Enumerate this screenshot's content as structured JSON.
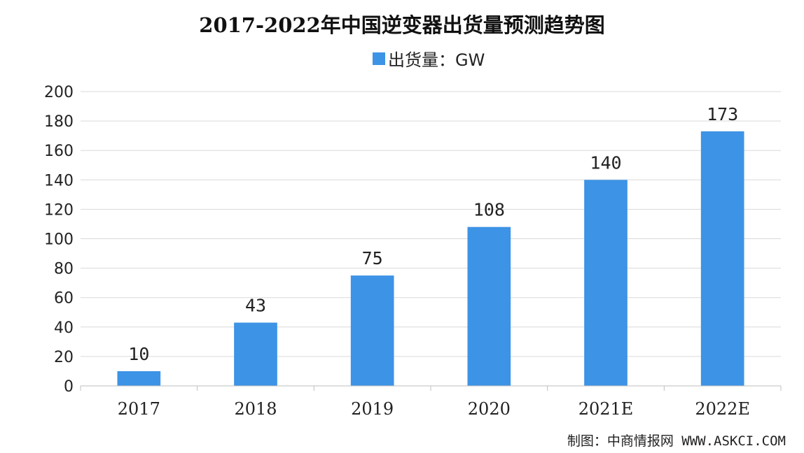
{
  "chart_data": {
    "type": "bar",
    "title": "2017-2022年中国逆变器出货量预测趋势图",
    "categories": [
      "2017",
      "2018",
      "2019",
      "2020",
      "2021E",
      "2022E"
    ],
    "series": [
      {
        "name": "出货量：GW",
        "values": [
          10,
          43,
          75,
          108,
          140,
          173
        ]
      }
    ],
    "data_labels": [
      "10",
      "43",
      "75",
      "108",
      "140",
      "173"
    ],
    "xlabel": "",
    "ylabel": "",
    "ylim": [
      0,
      200
    ],
    "yticks": [
      0,
      20,
      40,
      60,
      80,
      100,
      120,
      140,
      160,
      180,
      200
    ],
    "ytick_labels": [
      "0",
      "20",
      "40",
      "60",
      "80",
      "100",
      "120",
      "140",
      "160",
      "180",
      "200"
    ],
    "grid": true,
    "legend_position": "top-center"
  },
  "colors": {
    "bar": "#3d93e5",
    "gridline": "#d9d9d9"
  },
  "source_note": "制图：中商情报网 WWW.ASKCI.COM"
}
